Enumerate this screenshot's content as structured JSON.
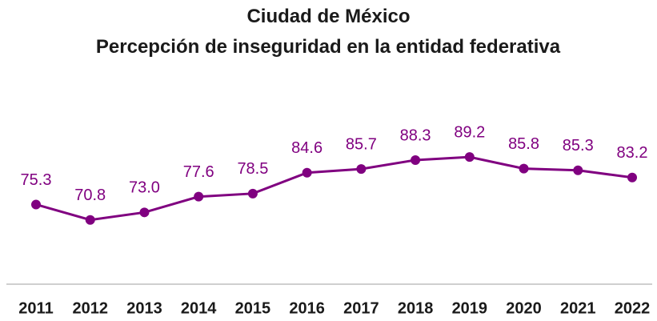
{
  "chart_data": {
    "type": "line",
    "title": "Ciudad de México",
    "subtitle": "Percepción de inseguridad en la entidad federativa",
    "categories": [
      "2011",
      "2012",
      "2013",
      "2014",
      "2015",
      "2016",
      "2017",
      "2018",
      "2019",
      "2020",
      "2021",
      "2022"
    ],
    "values": [
      75.3,
      70.8,
      73.0,
      77.6,
      78.5,
      84.6,
      85.7,
      88.3,
      89.2,
      85.8,
      85.3,
      83.2
    ],
    "value_labels": [
      "75.3",
      "70.8",
      "73.0",
      "77.6",
      "78.5",
      "84.6",
      "85.7",
      "88.3",
      "89.2",
      "85.8",
      "85.3",
      "83.2"
    ],
    "color": "#800080",
    "ylim": [
      52,
      100
    ]
  }
}
